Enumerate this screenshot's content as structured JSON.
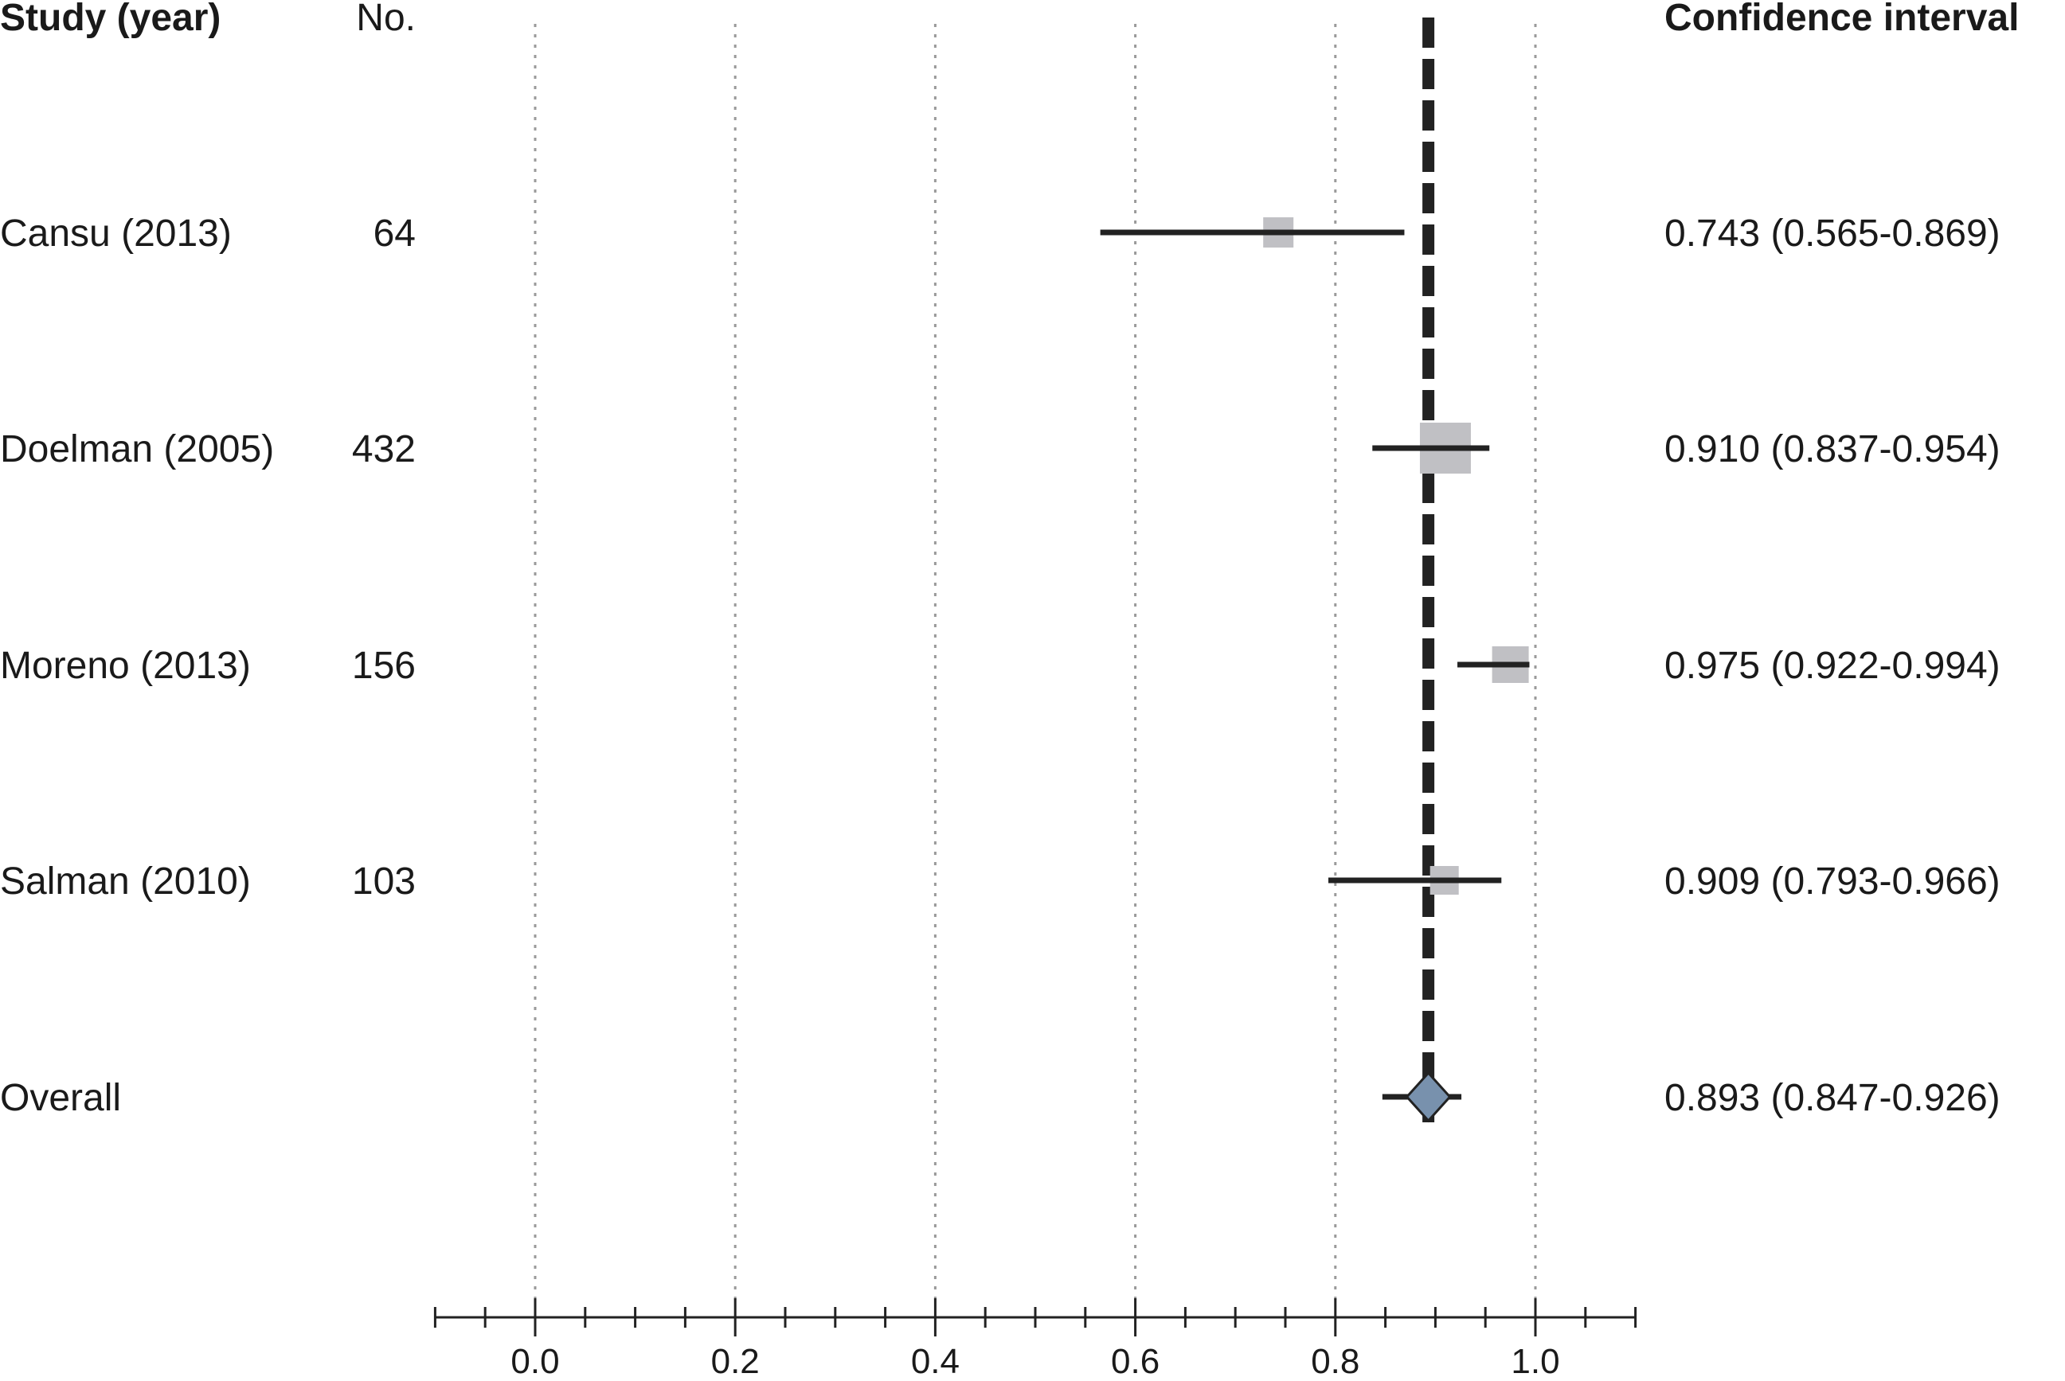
{
  "chart_data": {
    "type": "forest",
    "headers": {
      "study": "Study (year)",
      "n": "No.",
      "ci": "Confidence interval"
    },
    "xlim": [
      -0.1,
      1.1
    ],
    "xticks": [
      "0.0",
      "0.2",
      "0.4",
      "0.6",
      "0.8",
      "1.0"
    ],
    "xtick_values": [
      0.0,
      0.2,
      0.4,
      0.6,
      0.8,
      1.0
    ],
    "minor_tick_step": 0.05,
    "grid": "dotted vertical at major ticks",
    "reference_line": 0.893,
    "studies": [
      {
        "label": "Cansu (2013)",
        "n": "64",
        "estimate": 0.743,
        "lower": 0.565,
        "upper": 0.869,
        "ci_text": "0.743 (0.565-0.869)"
      },
      {
        "label": "Doelman (2005)",
        "n": "432",
        "estimate": 0.91,
        "lower": 0.837,
        "upper": 0.954,
        "ci_text": "0.910 (0.837-0.954)"
      },
      {
        "label": "Moreno (2013)",
        "n": "156",
        "estimate": 0.975,
        "lower": 0.922,
        "upper": 0.994,
        "ci_text": "0.975 (0.922-0.994)"
      },
      {
        "label": "Salman (2010)",
        "n": "103",
        "estimate": 0.909,
        "lower": 0.793,
        "upper": 0.966,
        "ci_text": "0.909 (0.793-0.966)"
      }
    ],
    "overall": {
      "label": "Overall",
      "estimate": 0.893,
      "lower": 0.847,
      "upper": 0.926,
      "ci_text": "0.893 (0.847-0.926)"
    }
  },
  "colors": {
    "text": "#1a1a1a",
    "ci_line": "#222222",
    "study_box": "#c0c0c4",
    "diamond": "#7891ad",
    "grid": "#9a9a9a"
  }
}
